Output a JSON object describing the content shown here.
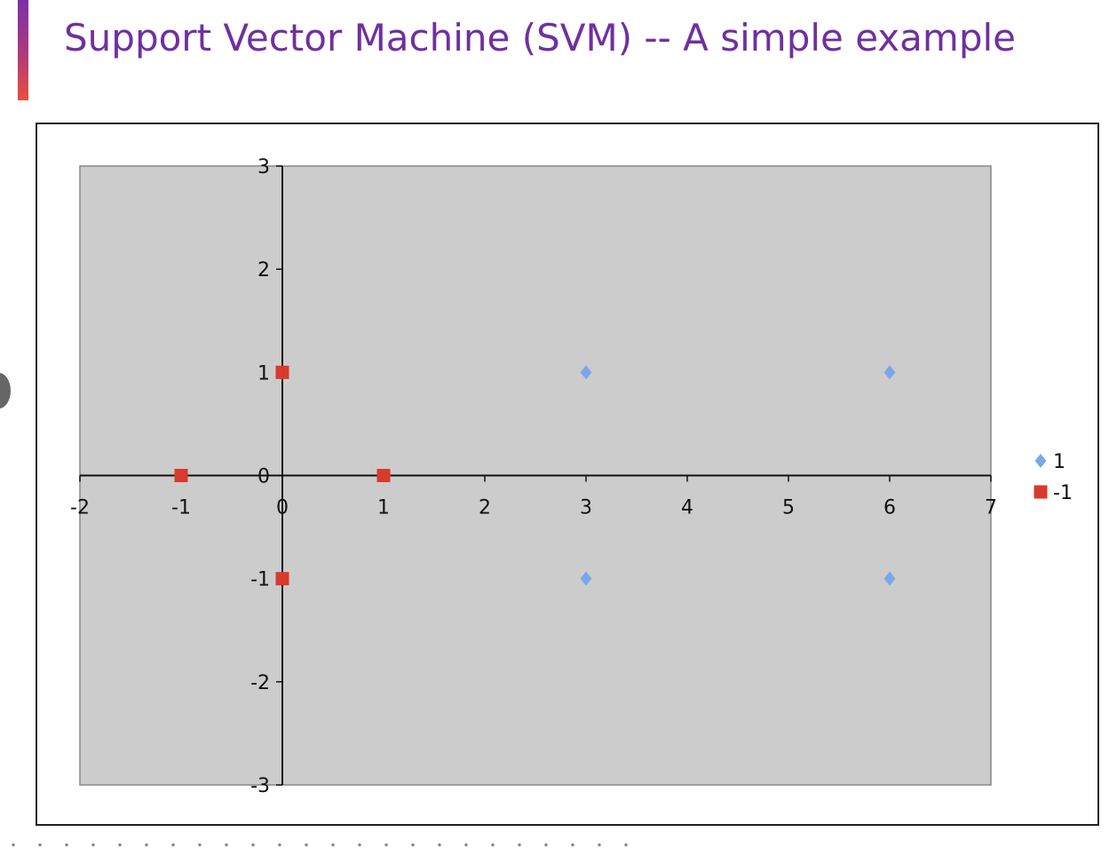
{
  "slide": {
    "title": "Support Vector Machine (SVM) -- A simple example"
  },
  "colors": {
    "title": "#7030a0",
    "plot_background": "#cccccc",
    "series_positive": "#7aa7e8",
    "series_negative": "#d83a2e"
  },
  "chart_data": {
    "type": "scatter",
    "xlim": [
      -2,
      7
    ],
    "ylim": [
      -3,
      3
    ],
    "x_ticks": [
      "-2",
      "-1",
      "0",
      "1",
      "2",
      "3",
      "4",
      "5",
      "6",
      "7"
    ],
    "y_ticks": [
      "3",
      "2",
      "1",
      "0",
      "-1",
      "-2",
      "-3"
    ],
    "grid": false,
    "legend_position": "right",
    "series": [
      {
        "name": "1",
        "marker": "diamond",
        "points": [
          [
            3,
            1
          ],
          [
            6,
            1
          ],
          [
            3,
            -1
          ],
          [
            6,
            -1
          ]
        ]
      },
      {
        "name": "-1",
        "marker": "square",
        "points": [
          [
            0,
            1
          ],
          [
            -1,
            0
          ],
          [
            1,
            0
          ],
          [
            0,
            -1
          ]
        ]
      }
    ]
  }
}
